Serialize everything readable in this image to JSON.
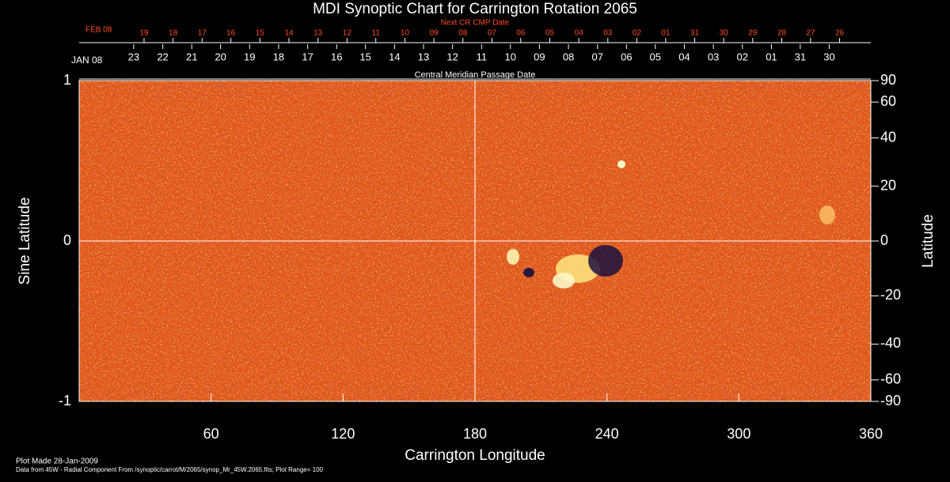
{
  "chart_data": {
    "type": "synoptic-map",
    "title": "MDI Synoptic Chart for Carrington Rotation 2065",
    "xlabel": "Carrington Longitude",
    "ylabel": "Sine Latitude",
    "y2label": "Latitude",
    "xlim": [
      0,
      360
    ],
    "xticks": [
      60,
      120,
      180,
      240,
      300,
      360
    ],
    "ylim": [
      -1,
      1
    ],
    "yticks": [
      -1,
      0,
      1
    ],
    "y2lim": [
      -90,
      90
    ],
    "y2scale": "sine",
    "y2ticks": [
      90,
      60,
      40,
      20,
      0,
      -20,
      -40,
      -60,
      -90
    ],
    "crosshair": {
      "x": 180,
      "y": 0
    },
    "top_axis": {
      "title": "Next CR CMP Date",
      "month": "FEB 08",
      "color": "#ff4b1f",
      "labels": [
        "19",
        "18",
        "17",
        "16",
        "15",
        "14",
        "13",
        "12",
        "11",
        "10",
        "09",
        "08",
        "07",
        "06",
        "05",
        "04",
        "03",
        "02",
        "01",
        "31",
        "30",
        "29",
        "28",
        "27",
        "26"
      ],
      "positions": [
        29.5,
        42.7,
        55.9,
        69.0,
        82.2,
        95.4,
        108.6,
        121.8,
        134.9,
        148.1,
        161.3,
        174.5,
        187.7,
        200.8,
        214.0,
        227.2,
        240.4,
        253.6,
        266.7,
        279.9,
        293.1,
        306.3,
        319.5,
        332.6,
        345.8
      ]
    },
    "cmp_axis": {
      "title": "Central Meridian Passage Date",
      "month": "JAN 08",
      "labels": [
        "23",
        "22",
        "21",
        "20",
        "19",
        "18",
        "17",
        "16",
        "15",
        "14",
        "13",
        "12",
        "11",
        "10",
        "09",
        "08",
        "07",
        "06",
        "05",
        "04",
        "03",
        "02",
        "01",
        "31",
        "30"
      ],
      "positions": [
        24.8,
        38.0,
        51.2,
        64.3,
        77.5,
        90.7,
        103.9,
        117.1,
        130.2,
        143.4,
        156.6,
        169.8,
        183.0,
        196.1,
        209.3,
        222.5,
        235.7,
        248.9,
        262.0,
        275.2,
        288.4,
        301.6,
        314.8,
        327.9,
        341.1
      ]
    },
    "footer": {
      "plot_made": "Plot Made 28-Jan-2009",
      "source": "Data from 45W - Radial Component From /synoptic/carrot/M/2065/synop_Mr_45W.2065.fits; Plot Range=  100"
    }
  }
}
